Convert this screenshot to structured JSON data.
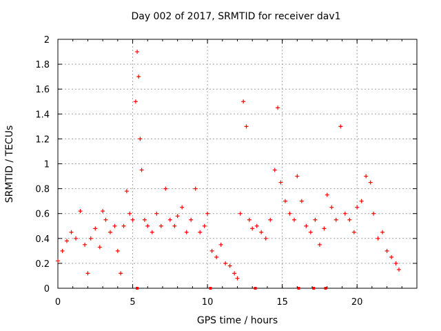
{
  "chart_data": {
    "type": "scatter",
    "title": "Day 002 of 2017, SRMTID for receiver dav1",
    "xlabel": "GPS time / hours",
    "ylabel": "SRMTID / TECUs",
    "xlim": [
      0,
      24
    ],
    "ylim": [
      0,
      2
    ],
    "xticks": [
      "0",
      "5",
      "10",
      "15",
      "20"
    ],
    "yticks": [
      "0",
      "0.2",
      "0.4",
      "0.6",
      "0.8",
      "1",
      "1.2",
      "1.4",
      "1.6",
      "1.8",
      "2"
    ],
    "grid": true,
    "marker": "+",
    "color": "#ff0000",
    "series": [
      {
        "name": "SRMTID",
        "x": [
          0.0,
          0.3,
          0.6,
          0.9,
          1.2,
          1.5,
          1.8,
          2.0,
          2.2,
          2.5,
          2.8,
          3.0,
          3.2,
          3.5,
          3.8,
          4.0,
          4.2,
          4.4,
          4.6,
          4.8,
          5.0,
          5.2,
          5.3,
          5.4,
          5.5,
          5.6,
          5.8,
          6.0,
          6.3,
          6.6,
          6.9,
          7.2,
          7.5,
          7.8,
          8.0,
          8.3,
          8.6,
          8.9,
          9.2,
          9.5,
          9.8,
          10.0,
          10.3,
          10.6,
          10.9,
          11.2,
          11.5,
          11.8,
          12.0,
          12.2,
          12.4,
          12.6,
          12.8,
          13.0,
          13.3,
          13.6,
          13.9,
          14.2,
          14.5,
          14.7,
          14.9,
          15.2,
          15.5,
          15.8,
          16.0,
          16.3,
          16.6,
          16.9,
          17.2,
          17.5,
          17.8,
          18.0,
          18.3,
          18.6,
          18.9,
          19.2,
          19.5,
          19.8,
          20.0,
          20.3,
          20.6,
          20.9,
          21.1,
          21.4,
          21.7,
          22.0,
          22.3,
          22.6,
          22.8
        ],
        "values": [
          0.22,
          0.3,
          0.38,
          0.45,
          0.4,
          0.62,
          0.35,
          0.12,
          0.4,
          0.48,
          0.33,
          0.62,
          0.55,
          0.45,
          0.5,
          0.3,
          0.12,
          0.5,
          0.78,
          0.6,
          0.55,
          1.5,
          1.9,
          1.7,
          1.2,
          0.95,
          0.55,
          0.5,
          0.45,
          0.6,
          0.5,
          0.8,
          0.55,
          0.5,
          0.58,
          0.65,
          0.45,
          0.55,
          0.8,
          0.45,
          0.5,
          0.6,
          0.3,
          0.25,
          0.35,
          0.2,
          0.18,
          0.12,
          0.08,
          0.6,
          1.5,
          1.3,
          0.55,
          0.48,
          0.5,
          0.45,
          0.4,
          0.55,
          0.95,
          1.45,
          0.85,
          0.7,
          0.6,
          0.55,
          0.9,
          0.7,
          0.5,
          0.45,
          0.55,
          0.35,
          0.48,
          0.75,
          0.65,
          0.55,
          1.3,
          0.6,
          0.55,
          0.45,
          0.65,
          0.7,
          0.9,
          0.85,
          0.6,
          0.4,
          0.45,
          0.3,
          0.25,
          0.2,
          0.15
        ]
      }
    ],
    "baseline_marks_x": [
      5.3,
      10.2,
      13.2,
      16.1,
      17.1,
      17.9
    ]
  }
}
